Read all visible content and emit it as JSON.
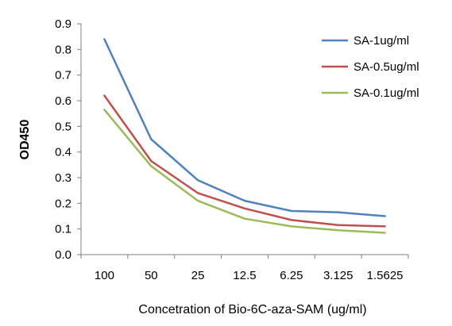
{
  "chart_data": {
    "type": "line",
    "categories": [
      "100",
      "50",
      "25",
      "12.5",
      "6.25",
      "3.125",
      "1.5625"
    ],
    "series": [
      {
        "name": "SA-1ug/ml",
        "color": "#4F81BD",
        "values": [
          0.84,
          0.45,
          0.29,
          0.21,
          0.17,
          0.165,
          0.15
        ]
      },
      {
        "name": "SA-0.5ug/ml",
        "color": "#C0504D",
        "values": [
          0.62,
          0.365,
          0.24,
          0.18,
          0.135,
          0.115,
          0.11
        ]
      },
      {
        "name": "SA-0.1ug/ml",
        "color": "#9BBB59",
        "values": [
          0.565,
          0.345,
          0.21,
          0.14,
          0.11,
          0.095,
          0.085
        ]
      }
    ],
    "xlabel": "Concetration of Bio-6C-aza-SAM (ug/ml)",
    "ylabel": "OD450",
    "ylim": [
      0,
      0.9
    ],
    "yticks": [
      "0.0",
      "0.1",
      "0.2",
      "0.3",
      "0.4",
      "0.5",
      "0.6",
      "0.7",
      "0.8",
      "0.9"
    ],
    "grid": false,
    "legend_position": "top-right"
  }
}
